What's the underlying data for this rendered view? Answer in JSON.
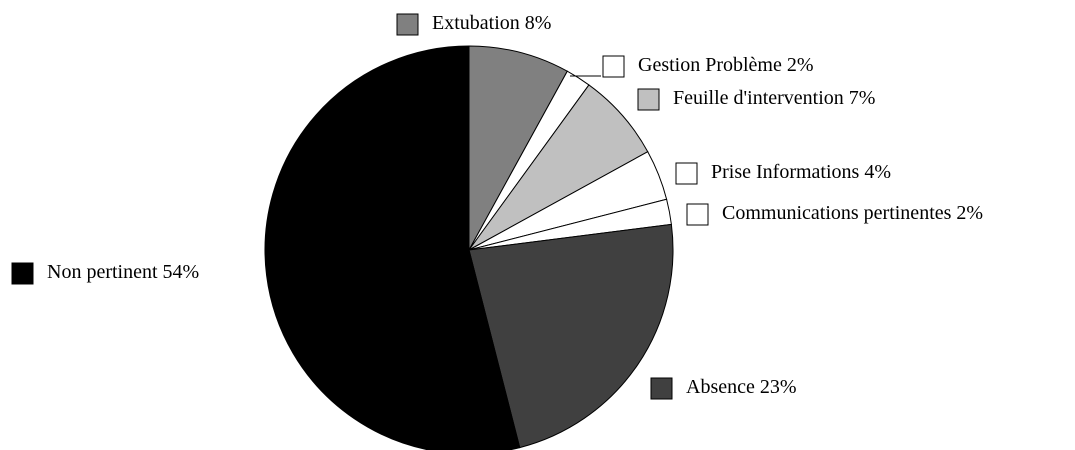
{
  "chart_data": {
    "type": "pie",
    "categories": [
      "Extubation",
      "Gestion Problème",
      "Feuille d'intervention",
      "Prise Informations",
      "Communications pertinentes",
      "Absence",
      "Non pertinent"
    ],
    "values": [
      8,
      2,
      7,
      4,
      2,
      23,
      54
    ],
    "value_labels": [
      "8%",
      "2%",
      "7%",
      "4%",
      "2%",
      "23%",
      "54%"
    ],
    "colors": [
      "#808080",
      "#ffffff",
      "#c0c0c0",
      "#ffffff",
      "#ffffff",
      "#404040",
      "#000000"
    ]
  }
}
